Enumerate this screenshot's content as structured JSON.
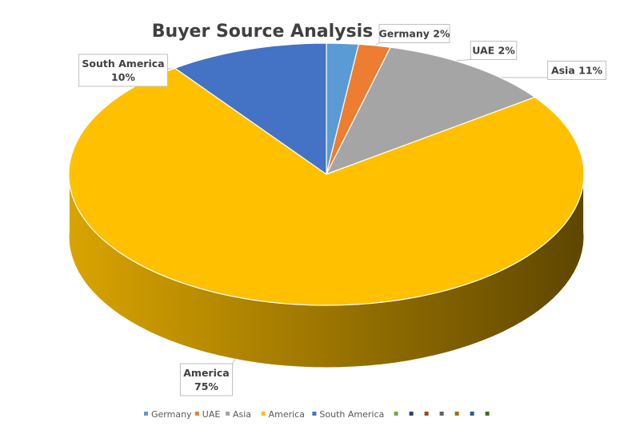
{
  "chart_data": {
    "type": "pie",
    "title": "Buyer Source Analysis",
    "categories": [
      "Germany",
      "UAE",
      "Asia",
      "America",
      "South America"
    ],
    "values": [
      2,
      2,
      11,
      75,
      10
    ],
    "unit": "%",
    "colors": [
      "#5B9BD5",
      "#ED7D31",
      "#A5A5A5",
      "#FFC000",
      "#4472C4"
    ],
    "data_labels": [
      {
        "lines": [
          "Germany 2%"
        ]
      },
      {
        "lines": [
          "UAE 2%"
        ]
      },
      {
        "lines": [
          "Asia 11%"
        ]
      },
      {
        "lines": [
          "America",
          "75%"
        ]
      },
      {
        "lines": [
          "South America",
          "10%"
        ]
      }
    ],
    "legend": {
      "position": "bottom",
      "entries": [
        "Germany",
        "UAE",
        "Asia",
        "America",
        "South America"
      ],
      "extra_marker_colors": [
        "#70AD47",
        "#264478",
        "#9E480E",
        "#636363",
        "#997300",
        "#255E91",
        "#43682B"
      ]
    },
    "style": "3d-exploded-perspective",
    "grid": false
  }
}
